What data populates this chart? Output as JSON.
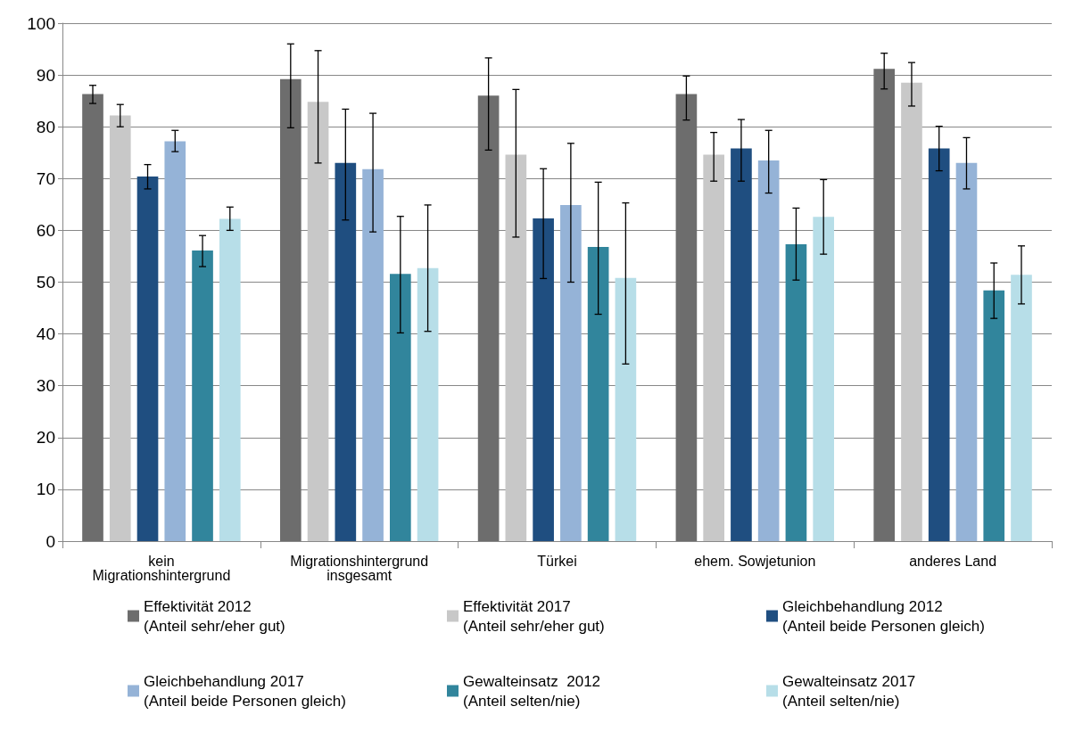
{
  "chart_data": {
    "type": "bar",
    "categories": [
      "kein\nMigrationshintergrund",
      "Migrationshintergrund\ninsgesamt",
      "Türkei",
      "ehem. Sowjetunion",
      "anderes Land"
    ],
    "series": [
      {
        "name": "Effektivität 2012\n(Anteil sehr/eher gut)",
        "color": "#6d6d6d",
        "values": [
          86.3,
          89.2,
          86,
          86.3,
          91.2
        ],
        "errors": [
          [
            84.5,
            88
          ],
          [
            79.8,
            96
          ],
          [
            75.5,
            93.3
          ],
          [
            81.3,
            89.8
          ],
          [
            87.3,
            94.2
          ]
        ]
      },
      {
        "name": "Effektivität 2017\n(Anteil sehr/eher gut)",
        "color": "#c8c8c8",
        "values": [
          82.2,
          84.8,
          74.6,
          74.6,
          88.5
        ],
        "errors": [
          [
            80,
            84.3
          ],
          [
            73,
            94.7
          ],
          [
            58.7,
            87.2
          ],
          [
            69.5,
            78.9
          ],
          [
            84,
            92.4
          ]
        ]
      },
      {
        "name": "Gleichbehandlung 2012\n(Anteil beide Personen gleich)",
        "color": "#1f4e80",
        "values": [
          70.4,
          73,
          62.3,
          75.8,
          75.8
        ],
        "errors": [
          [
            68,
            72.7
          ],
          [
            62,
            83.4
          ],
          [
            50.7,
            71.9
          ],
          [
            69.5,
            81.4
          ],
          [
            71.5,
            80.1
          ]
        ]
      },
      {
        "name": "Gleichbehandlung 2017\n(Anteil beide Personen gleich)",
        "color": "#95b3d7",
        "values": [
          77.2,
          71.8,
          64.9,
          73.5,
          73
        ],
        "errors": [
          [
            75.2,
            79.3
          ],
          [
            59.7,
            82.6
          ],
          [
            50,
            76.8
          ],
          [
            67.2,
            79.3
          ],
          [
            68,
            77.9
          ]
        ]
      },
      {
        "name": "Gewalteinsatz  2012\n(Anteil selten/nie)",
        "color": "#31859c",
        "values": [
          56.1,
          51.6,
          56.8,
          57.3,
          48.4
        ],
        "errors": [
          [
            53,
            59
          ],
          [
            40.2,
            62.7
          ],
          [
            43.8,
            69.3
          ],
          [
            50.4,
            64.3
          ],
          [
            43,
            53.7
          ]
        ]
      },
      {
        "name": "Gewalteinsatz 2017\n(Anteil selten/nie)",
        "color": "#b7dee8",
        "values": [
          62.2,
          52.7,
          50.8,
          62.6,
          51.4
        ],
        "errors": [
          [
            60,
            64.5
          ],
          [
            40.5,
            64.9
          ],
          [
            34.2,
            65.3
          ],
          [
            55.4,
            69.8
          ],
          [
            45.8,
            57
          ]
        ]
      }
    ],
    "ylim": [
      0,
      100
    ],
    "yticks": [
      0,
      10,
      20,
      30,
      40,
      50,
      60,
      70,
      80,
      90,
      100
    ],
    "grid": "y",
    "legend": "bottom"
  }
}
